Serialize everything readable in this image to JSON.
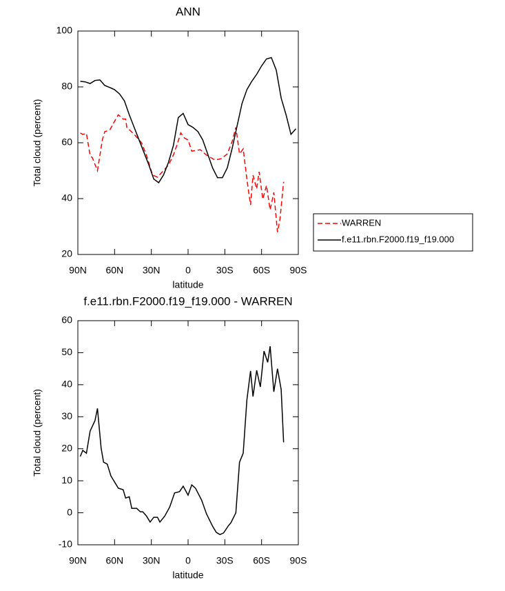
{
  "chart_data": [
    {
      "type": "line",
      "title": "ANN",
      "xlabel": "latitude",
      "ylabel": "Total cloud (percent)",
      "xlim": [
        90,
        -90
      ],
      "ylim": [
        20,
        100
      ],
      "xticks": [
        {
          "value": 90,
          "label": "90N"
        },
        {
          "value": 60,
          "label": "60N"
        },
        {
          "value": 30,
          "label": "30N"
        },
        0,
        {
          "value": -30,
          "label": "30S"
        },
        {
          "value": -60,
          "label": "60S"
        },
        {
          "value": -90,
          "label": "90S"
        }
      ],
      "yticks": [
        20,
        40,
        60,
        80,
        100
      ],
      "legend": "right",
      "series": [
        {
          "name": "WARREN",
          "color": "#ff0000",
          "dashed": true,
          "x": [
            88,
            86,
            83,
            80,
            78,
            74,
            70,
            68,
            64,
            59,
            57,
            53,
            51,
            50,
            44,
            38,
            34,
            29,
            25,
            21,
            16,
            12,
            9,
            6,
            3,
            0,
            -3,
            -10,
            -15,
            -22,
            -27,
            -32,
            -36,
            -39,
            -42,
            -45,
            -48,
            -51,
            -53,
            -56,
            -58,
            -61,
            -64,
            -67,
            -70,
            -73,
            -75,
            -78
          ],
          "values": [
            63.5,
            63,
            63.3,
            55.5,
            54.5,
            50,
            61,
            64,
            64.5,
            68.5,
            70,
            68.5,
            68.5,
            65.5,
            63,
            60,
            55.6,
            48.4,
            47.7,
            49.6,
            52,
            55.6,
            59.3,
            63.5,
            61.7,
            61,
            57,
            57.5,
            55.6,
            53.8,
            54.3,
            56,
            60.5,
            65.5,
            56,
            57.8,
            47,
            37.7,
            48.4,
            43.5,
            49.6,
            39.8,
            44.7,
            36,
            42.2,
            28,
            32.6,
            46
          ]
        },
        {
          "name": "f.e11.rbn.F2000.f19_f19.000",
          "color": "#000000",
          "dashed": false,
          "x": [
            88,
            84,
            80,
            76,
            72,
            68,
            64,
            60,
            56,
            52,
            48,
            44,
            40,
            36,
            32,
            28,
            24,
            20,
            16,
            12,
            8,
            4,
            0,
            -4,
            -8,
            -12,
            -16,
            -20,
            -24,
            -28,
            -32,
            -36,
            -40,
            -44,
            -48,
            -52,
            -56,
            -60,
            -64,
            -68,
            -72,
            -76,
            -80,
            -84,
            -88
          ],
          "values": [
            82,
            81.8,
            81.2,
            82.3,
            82.5,
            80.5,
            79.8,
            79,
            77.5,
            75,
            70,
            65.5,
            61,
            56.5,
            52,
            47,
            45.7,
            48.5,
            53,
            59,
            69,
            70.5,
            66.5,
            65.5,
            64,
            61,
            56,
            51,
            47.5,
            47.5,
            51,
            58,
            66,
            74,
            79,
            82,
            84.5,
            87.5,
            90,
            90.5,
            86,
            76,
            70,
            63,
            65
          ]
        }
      ]
    },
    {
      "type": "line",
      "title": "f.e11.rbn.F2000.f19_f19.000 - WARREN",
      "xlabel": "latitude",
      "ylabel": "Total cloud (percent)",
      "xlim": [
        90,
        -90
      ],
      "ylim": [
        -10,
        60
      ],
      "xticks": [
        {
          "value": 90,
          "label": "90N"
        },
        {
          "value": 60,
          "label": "60N"
        },
        {
          "value": 30,
          "label": "30N"
        },
        0,
        {
          "value": -30,
          "label": "30S"
        },
        {
          "value": -60,
          "label": "60S"
        },
        {
          "value": -90,
          "label": "90S"
        }
      ],
      "yticks": [
        -10,
        0,
        10,
        20,
        30,
        40,
        50,
        60
      ],
      "series": [
        {
          "color": "#000000",
          "dashed": false,
          "x": [
            88,
            86,
            83,
            80,
            76,
            74,
            71,
            69,
            66,
            63,
            57,
            53,
            51,
            48,
            46,
            42,
            39,
            37,
            34,
            31,
            28,
            25,
            23,
            19,
            15,
            11,
            7,
            4,
            0,
            -3,
            -6,
            -11,
            -15,
            -20,
            -23,
            -26,
            -29,
            -33,
            -35,
            -39,
            -42,
            -45,
            -48,
            -51,
            -53,
            -56,
            -59,
            -62,
            -65,
            -67,
            -70,
            -73,
            -76,
            -78
          ],
          "values": [
            17.6,
            19.5,
            18.6,
            25.5,
            28.8,
            32.6,
            20.2,
            15.8,
            15.2,
            11.5,
            7.7,
            7.2,
            4.6,
            5,
            1.4,
            1.4,
            0.3,
            0.3,
            -1,
            -2.9,
            -1.4,
            -1.4,
            -2.9,
            -1,
            1.8,
            6.2,
            6.6,
            8.3,
            5.5,
            8.7,
            7.7,
            4,
            -0.3,
            -4.2,
            -6.1,
            -6.8,
            -6.3,
            -4,
            -3.1,
            0,
            15.8,
            18.6,
            35.2,
            44.3,
            36.3,
            44.5,
            39.3,
            50.5,
            47,
            52,
            37.8,
            45,
            38.5,
            22
          ]
        }
      ]
    }
  ]
}
